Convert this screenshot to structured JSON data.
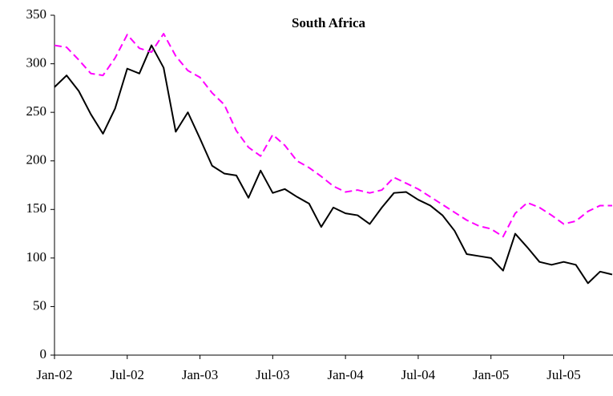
{
  "chart_data": {
    "type": "line",
    "title": "South Africa",
    "categories": [
      "Jan-02",
      null,
      null,
      null,
      null,
      null,
      "Jul-02",
      null,
      null,
      null,
      null,
      null,
      "Jan-03",
      null,
      null,
      null,
      null,
      null,
      "Jul-03",
      null,
      null,
      null,
      null,
      null,
      "Jan-04",
      null,
      null,
      null,
      null,
      null,
      "Jul-04",
      null,
      null,
      null,
      null,
      null,
      "Jan-05",
      null,
      null,
      null,
      null,
      null,
      "Jul-05",
      null,
      null,
      null,
      null
    ],
    "series": [
      {
        "color": "#000000",
        "line_style": "solid",
        "values": [
          276,
          288,
          272,
          248,
          228,
          254,
          295,
          290,
          319,
          296,
          230,
          250,
          223,
          195,
          187,
          185,
          162,
          190,
          167,
          171,
          163,
          156,
          132,
          152,
          146,
          144,
          135,
          152,
          167,
          168,
          160,
          154,
          144,
          128,
          104,
          102,
          100,
          87,
          125,
          111,
          96,
          93,
          96,
          93,
          74,
          86,
          83
        ]
      },
      {
        "color": "#ff00ff",
        "line_style": "dashed",
        "values": [
          319,
          317,
          304,
          290,
          288,
          306,
          330,
          316,
          312,
          331,
          308,
          293,
          286,
          270,
          258,
          231,
          214,
          205,
          227,
          216,
          200,
          193,
          184,
          174,
          168,
          170,
          167,
          170,
          183,
          177,
          171,
          163,
          155,
          147,
          139,
          133,
          130,
          122,
          146,
          157,
          152,
          144,
          135,
          138,
          148,
          154,
          154
        ]
      }
    ],
    "ylim": [
      0,
      350
    ],
    "yticks": [
      0,
      50,
      100,
      150,
      200,
      250,
      300,
      350
    ],
    "grid": false
  }
}
